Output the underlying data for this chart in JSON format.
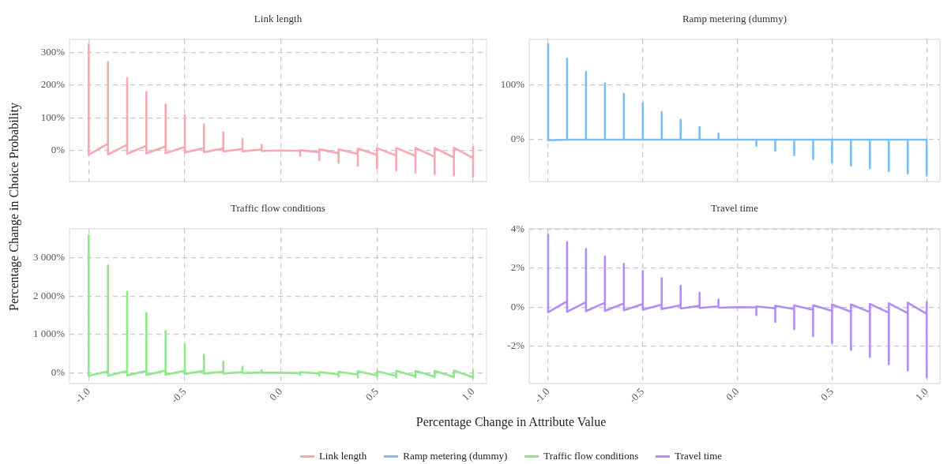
{
  "chart_data": [
    {
      "type": "line",
      "title": "Link length",
      "xlabel": "Percentage Change in Attribute Value",
      "ylabel": "Percentage Change in Choice Probability",
      "x": [
        -1,
        -1,
        -0.9,
        -0.9,
        -0.9,
        -0.8,
        -0.8,
        -0.8,
        -0.7,
        -0.7,
        -0.7,
        -0.6,
        -0.6,
        -0.6,
        -0.5,
        -0.5,
        -0.5,
        -0.4,
        -0.4,
        -0.4,
        -0.3,
        -0.3,
        -0.3,
        -0.2,
        -0.2,
        -0.2,
        -0.1,
        -0.1,
        -0.1,
        0,
        0.1,
        0.1,
        0.1,
        0.2,
        0.2,
        0.2,
        0.3,
        0.3,
        0.3,
        0.4,
        0.4,
        0.4,
        0.5,
        0.5,
        0.5,
        0.6,
        0.6,
        0.6,
        0.7,
        0.7,
        0.7,
        0.8,
        0.8,
        0.8,
        0.9,
        0.9,
        0.9,
        1,
        1,
        1
      ],
      "series": [
        {
          "name": "Link length",
          "color": "#f9a8b2",
          "values": [
            325,
            -13,
            21,
            270,
            -12,
            18,
            221,
            -10,
            15,
            179,
            -9,
            13,
            141,
            -8,
            11,
            108,
            -6,
            8,
            80,
            -5,
            7,
            56,
            -3,
            5,
            36,
            -2,
            3,
            17,
            -1,
            0,
            -1,
            -16,
            1,
            -5,
            -29,
            4,
            -8,
            -38,
            4,
            -10,
            -47,
            6,
            -13,
            -55,
            7,
            -15,
            -61,
            8,
            -16,
            -67,
            8,
            -19,
            -72,
            8,
            -21,
            -76,
            9,
            -23,
            -80,
            11
          ]
        }
      ],
      "xlim": [
        -1.1,
        1.07
      ],
      "xticks": [
        -1,
        -0.5,
        0,
        0.5,
        1
      ],
      "ylim": [
        -95,
        340
      ],
      "yticks": [
        {
          "value": 0,
          "label": "0%"
        },
        {
          "value": 100,
          "label": "100%"
        },
        {
          "value": 200,
          "label": "200%"
        },
        {
          "value": 300,
          "label": "300%"
        }
      ],
      "grid": true,
      "legend": "bottom",
      "marker": "none",
      "line_style": "solid",
      "tick_labels": "y"
    },
    {
      "type": "line",
      "title": "Ramp metering (dummy)",
      "x": [
        -1,
        -1,
        -0.9,
        -0.9,
        -0.9,
        -0.8,
        -0.8,
        -0.8,
        -0.7,
        -0.7,
        -0.7,
        -0.6,
        -0.6,
        -0.6,
        -0.5,
        -0.5,
        -0.5,
        -0.4,
        -0.4,
        -0.4,
        -0.3,
        -0.3,
        -0.3,
        -0.2,
        -0.2,
        -0.2,
        -0.1,
        -0.1,
        -0.1,
        0,
        0.1,
        0.1,
        0.1,
        0.2,
        0.2,
        0.2,
        0.3,
        0.3,
        0.3,
        0.4,
        0.4,
        0.4,
        0.5,
        0.5,
        0.5,
        0.6,
        0.6,
        0.6,
        0.7,
        0.7,
        0.7,
        0.8,
        0.8,
        0.8,
        0.9,
        0.9,
        0.9,
        1,
        1,
        1
      ],
      "series": [
        {
          "name": "Ramp metering (dummy)",
          "color": "#7cbfec",
          "values": [
            173,
            -1,
            0,
            147,
            0,
            0,
            123,
            0,
            0,
            102,
            0,
            0,
            83,
            0,
            0,
            66,
            0,
            0,
            50,
            0,
            0,
            36,
            0,
            0,
            23,
            0,
            0,
            11,
            0,
            0,
            0,
            -11,
            0,
            0,
            -20,
            0,
            0,
            -28,
            0,
            0,
            -35,
            0,
            0,
            -41,
            0,
            0,
            -47,
            0,
            0,
            -52,
            0,
            0,
            -57,
            0,
            0,
            -61,
            0,
            0,
            -65,
            0
          ]
        }
      ],
      "xlim": [
        -1.1,
        1.07
      ],
      "xticks": [
        -1,
        -0.5,
        0,
        0.5,
        1
      ],
      "ylim": [
        -76,
        182
      ],
      "yticks": [
        {
          "value": 0,
          "label": "0%"
        },
        {
          "value": 100,
          "label": "100%"
        }
      ],
      "grid": true,
      "legend": "bottom",
      "marker": "none",
      "line_style": "solid",
      "tick_labels": "y"
    },
    {
      "type": "line",
      "title": "Traffic flow conditions",
      "x": [
        -1,
        -1,
        -0.9,
        -0.9,
        -0.9,
        -0.8,
        -0.8,
        -0.8,
        -0.7,
        -0.7,
        -0.7,
        -0.6,
        -0.6,
        -0.6,
        -0.5,
        -0.5,
        -0.5,
        -0.4,
        -0.4,
        -0.4,
        -0.3,
        -0.3,
        -0.3,
        -0.2,
        -0.2,
        -0.2,
        -0.1,
        -0.1,
        -0.1,
        0,
        0.1,
        0.1,
        0.1,
        0.2,
        0.2,
        0.2,
        0.3,
        0.3,
        0.3,
        0.4,
        0.4,
        0.4,
        0.5,
        0.5,
        0.5,
        0.6,
        0.6,
        0.6,
        0.7,
        0.7,
        0.7,
        0.8,
        0.8,
        0.8,
        0.9,
        0.9,
        0.9,
        1,
        1,
        1
      ],
      "series": [
        {
          "name": "Traffic flow conditions",
          "color": "#8ee88c",
          "values": [
            3590,
            -80,
            40,
            2810,
            -80,
            50,
            2120,
            -70,
            50,
            1560,
            -60,
            60,
            1090,
            -50,
            50,
            740,
            -30,
            50,
            470,
            -20,
            30,
            290,
            -20,
            20,
            160,
            -10,
            10,
            70,
            0,
            0,
            -10,
            -50,
            20,
            -20,
            -80,
            20,
            -40,
            -100,
            30,
            -50,
            -120,
            40,
            -70,
            -100,
            40,
            -80,
            -120,
            50,
            -90,
            -120,
            50,
            -100,
            -120,
            50,
            -110,
            -120,
            60,
            -120,
            -120,
            60
          ]
        }
      ],
      "xlim": [
        -1.1,
        1.07
      ],
      "xticks": [
        {
          "value": -1,
          "label": "-1.0"
        },
        -0.5,
        {
          "value": 0,
          "label": "0.0"
        },
        0.5,
        {
          "value": 1,
          "label": "1.0"
        }
      ],
      "ylim": [
        -280,
        3760
      ],
      "yticks": [
        {
          "value": 0,
          "label": "0%"
        },
        {
          "value": 1000,
          "label": "1 000%"
        },
        {
          "value": 2000,
          "label": "2 000%"
        },
        {
          "value": 3000,
          "label": "3 000%"
        }
      ],
      "grid": true,
      "legend": "bottom",
      "marker": "none",
      "line_style": "solid"
    },
    {
      "type": "line",
      "title": "Travel time",
      "x": [
        -1,
        -1,
        -0.9,
        -0.9,
        -0.9,
        -0.8,
        -0.8,
        -0.8,
        -0.7,
        -0.7,
        -0.7,
        -0.6,
        -0.6,
        -0.6,
        -0.5,
        -0.5,
        -0.5,
        -0.4,
        -0.4,
        -0.4,
        -0.3,
        -0.3,
        -0.3,
        -0.2,
        -0.2,
        -0.2,
        -0.1,
        -0.1,
        -0.1,
        0,
        0.1,
        0.1,
        0.1,
        0.2,
        0.2,
        0.2,
        0.3,
        0.3,
        0.3,
        0.4,
        0.4,
        0.4,
        0.5,
        0.5,
        0.5,
        0.6,
        0.6,
        0.6,
        0.7,
        0.7,
        0.7,
        0.8,
        0.8,
        0.8,
        0.9,
        0.9,
        0.9,
        1,
        1,
        1
      ],
      "series": [
        {
          "name": "Travel time",
          "color": "#b28cf8",
          "values": [
            3.73,
            -0.26,
            0.3,
            3.36,
            -0.24,
            0.26,
            2.99,
            -0.21,
            0.23,
            2.61,
            -0.19,
            0.19,
            2.23,
            -0.16,
            0.16,
            1.86,
            -0.13,
            0.13,
            1.49,
            -0.1,
            0.1,
            1.11,
            -0.07,
            0.07,
            0.74,
            -0.04,
            0.04,
            0.39,
            -0.03,
            0,
            -0.01,
            -0.41,
            0.04,
            -0.06,
            -0.76,
            0.07,
            -0.1,
            -1.13,
            0.09,
            -0.14,
            -1.49,
            0.1,
            -0.19,
            -1.84,
            0.13,
            -0.23,
            -2.2,
            0.14,
            -0.26,
            -2.56,
            0.17,
            -0.29,
            -2.93,
            0.2,
            -0.31,
            -3.26,
            0.23,
            -0.34,
            -3.61,
            0.26
          ]
        }
      ],
      "xlim": [
        -1.1,
        1.07
      ],
      "xticks": [
        {
          "value": -1,
          "label": "-1.0"
        },
        -0.5,
        {
          "value": 0,
          "label": "0.0"
        },
        0.5,
        {
          "value": 1,
          "label": "1.0"
        }
      ],
      "ylim": [
        -3.93,
        4.04
      ],
      "yticks": [
        {
          "value": -2,
          "label": "-2%"
        },
        {
          "value": 0,
          "label": "0%"
        },
        {
          "value": 2,
          "label": "2%"
        },
        {
          "value": 4,
          "label": "4%"
        }
      ],
      "grid": true,
      "legend": "bottom",
      "marker": "none",
      "line_style": "solid"
    }
  ]
}
